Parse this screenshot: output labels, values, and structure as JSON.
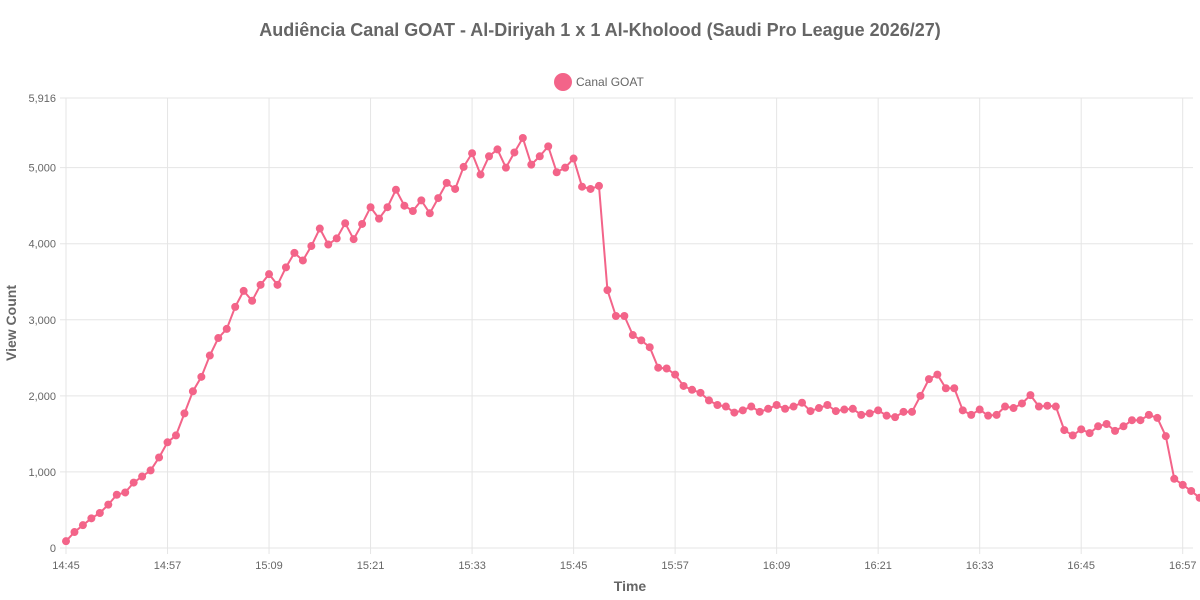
{
  "chart_data": {
    "type": "line",
    "title": "Audiência Canal GOAT - Al-Diriyah 1 x 1 Al-Kholood (Saudi Pro League 2026/27)",
    "xlabel": "Time",
    "ylabel": "View Count",
    "ylim": [
      0,
      5916
    ],
    "y_ticks": [
      "0",
      "1,000",
      "2,000",
      "3,000",
      "4,000",
      "5,000",
      "5,916"
    ],
    "x_ticks": [
      "14:45",
      "14:57",
      "15:09",
      "15:21",
      "15:33",
      "15:45",
      "15:57",
      "16:09",
      "16:21",
      "16:33",
      "16:45",
      "16:57"
    ],
    "grid": true,
    "legend_position": "top",
    "colors": {
      "series": "#f36489",
      "grid": "#e5e5e5",
      "text": "#666666"
    },
    "series": [
      {
        "name": "Canal GOAT",
        "values": [
          90,
          210,
          300,
          390,
          460,
          570,
          700,
          730,
          860,
          940,
          1020,
          1190,
          1390,
          1480,
          1770,
          2060,
          2250,
          2530,
          2760,
          2880,
          3170,
          3380,
          3250,
          3460,
          3600,
          3460,
          3690,
          3880,
          3780,
          3970,
          4200,
          3990,
          4070,
          4270,
          4060,
          4260,
          4480,
          4330,
          4480,
          4710,
          4500,
          4430,
          4570,
          4400,
          4600,
          4800,
          4720,
          5010,
          5190,
          4910,
          5150,
          5240,
          5000,
          5200,
          5390,
          5040,
          5150,
          5280,
          4940,
          5000,
          5120,
          4750,
          4720,
          4760,
          3390,
          3050,
          3050,
          2800,
          2730,
          2640,
          2370,
          2360,
          2280,
          2130,
          2080,
          2040,
          1940,
          1880,
          1860,
          1780,
          1810,
          1860,
          1790,
          1830,
          1880,
          1830,
          1860,
          1910,
          1800,
          1840,
          1880,
          1800,
          1820,
          1830,
          1750,
          1770,
          1810,
          1740,
          1720,
          1790,
          1790,
          2000,
          2220,
          2280,
          2100,
          2100,
          1810,
          1750,
          1820,
          1740,
          1750,
          1860,
          1840,
          1900,
          2010,
          1860,
          1870,
          1860,
          1550,
          1480,
          1560,
          1510,
          1600,
          1630,
          1540,
          1600,
          1680,
          1680,
          1750,
          1710,
          1470,
          910,
          830,
          750,
          660
        ]
      }
    ]
  }
}
